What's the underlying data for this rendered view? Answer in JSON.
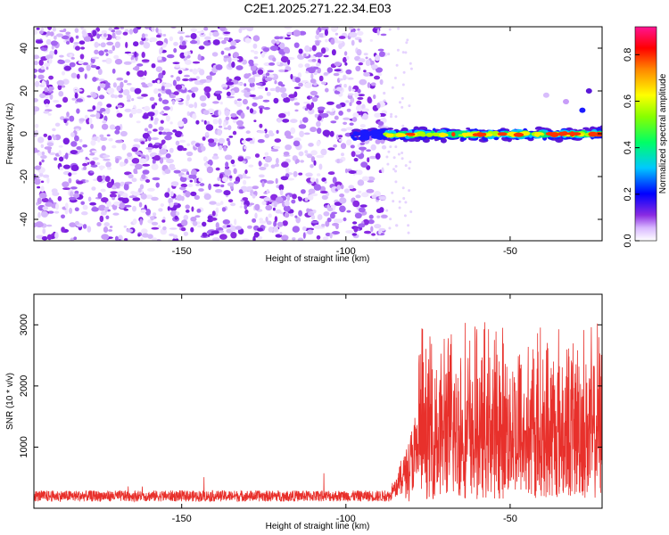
{
  "title": "C2E1.2025.271.22.34.E03",
  "chart_data": [
    {
      "type": "heatmap",
      "xlabel": "Height of straight line (km)",
      "ylabel": "Frequency (Hz)",
      "xlim": [
        -195,
        -22
      ],
      "ylim": [
        -50,
        50
      ],
      "xticks": [
        -150,
        -100,
        -50
      ],
      "yticks": [
        -40,
        -20,
        0,
        20,
        40
      ],
      "colorbar": {
        "label": "Normalized spectral amplitude",
        "range": [
          0,
          0.92
        ],
        "ticks": [
          0.0,
          0.2,
          0.4,
          0.6,
          0.8
        ]
      },
      "description_values": {
        "noise_region_x": [
          -195,
          -88
        ],
        "signal_band_x": [
          -88,
          -22
        ],
        "signal_center_freq": 0
      }
    },
    {
      "type": "line",
      "xlabel": "Height of straight line (km)",
      "ylabel": "SNR (10 * v/v)",
      "xlim": [
        -195,
        -22
      ],
      "ylim": [
        0,
        3500
      ],
      "xticks": [
        -150,
        -100,
        -50
      ],
      "yticks": [
        1000,
        2000,
        3000
      ],
      "color": "#e8302b",
      "segments": [
        {
          "x_start": -195,
          "x_end": -86,
          "base": 200,
          "spread": 90
        },
        {
          "x_start": -86,
          "x_end": -78,
          "base": 600,
          "spread": 600
        },
        {
          "x_start": -78,
          "x_end": -22,
          "base": 1700,
          "spread": 1600
        }
      ]
    }
  ]
}
